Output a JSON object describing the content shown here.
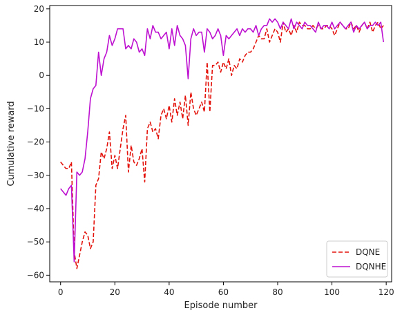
{
  "chart_data": {
    "type": "line",
    "title": "",
    "xlabel": "Episode number",
    "ylabel": "Cumulative reward",
    "xlim": [
      -4,
      122
    ],
    "ylim": [
      -62,
      21
    ],
    "xticks": [
      0,
      20,
      40,
      60,
      80,
      100,
      120
    ],
    "yticks": [
      -60,
      -50,
      -40,
      -30,
      -20,
      -10,
      0,
      10,
      20
    ],
    "xtick_labels": [
      "0",
      "20",
      "40",
      "60",
      "80",
      "100",
      "120"
    ],
    "ytick_labels": [
      "−60",
      "−50",
      "−40",
      "−30",
      "−20",
      "−10",
      "0",
      "10",
      "20"
    ],
    "grid": false,
    "legend_position": "lower-right",
    "series": [
      {
        "name": "DQNE",
        "color": "#e3120b",
        "linestyle": "dashed",
        "x": [
          0,
          1,
          2,
          3,
          4,
          5,
          6,
          7,
          8,
          9,
          10,
          11,
          12,
          13,
          14,
          15,
          16,
          17,
          18,
          19,
          20,
          21,
          22,
          23,
          24,
          25,
          26,
          27,
          28,
          29,
          30,
          31,
          32,
          33,
          34,
          35,
          36,
          37,
          38,
          39,
          40,
          41,
          42,
          43,
          44,
          45,
          46,
          47,
          48,
          49,
          50,
          51,
          52,
          53,
          54,
          55,
          56,
          57,
          58,
          59,
          60,
          61,
          62,
          63,
          64,
          65,
          66,
          67,
          68,
          69,
          70,
          71,
          72,
          73,
          74,
          75,
          76,
          77,
          78,
          79,
          80,
          81,
          82,
          83,
          84,
          85,
          86,
          87,
          88,
          89,
          90,
          91,
          92,
          93,
          94,
          95,
          96,
          97,
          98,
          99,
          100,
          101,
          102,
          103,
          104,
          105,
          106,
          107,
          108,
          109,
          110,
          111,
          112,
          113,
          114,
          115,
          116,
          117,
          118,
          119
        ],
        "y": [
          -26,
          -27,
          -28,
          -28,
          -26,
          -53,
          -58,
          -54,
          -50,
          -47,
          -48,
          -52,
          -50,
          -33,
          -31,
          -23,
          -25,
          -22,
          -17,
          -28,
          -24,
          -28,
          -22,
          -16,
          -12,
          -29,
          -21,
          -26,
          -27,
          -25,
          -22,
          -32,
          -16,
          -14,
          -17,
          -16,
          -19,
          -12,
          -10,
          -13,
          -9,
          -14,
          -7,
          -12,
          -8,
          -13,
          -6,
          -15,
          -5,
          -10,
          -12,
          -10,
          -8,
          -11,
          4,
          -11,
          3,
          3,
          4,
          1,
          4,
          2,
          5,
          0,
          3,
          2,
          5,
          4,
          6,
          7,
          7,
          8,
          10,
          12,
          11,
          11,
          14,
          10,
          12,
          14,
          13,
          10,
          16,
          13,
          14,
          12,
          15,
          13,
          16,
          15,
          15,
          14,
          14,
          15,
          14,
          15,
          14,
          14,
          15,
          15,
          14,
          12,
          14,
          16,
          15,
          14,
          14,
          16,
          14,
          15,
          13,
          15,
          16,
          14,
          16,
          13,
          15,
          16,
          14,
          15
        ]
      },
      {
        "name": "DQNHE",
        "color": "#bd10d0",
        "linestyle": "solid",
        "x": [
          0,
          1,
          2,
          3,
          4,
          5,
          6,
          7,
          8,
          9,
          10,
          11,
          12,
          13,
          14,
          15,
          16,
          17,
          18,
          19,
          20,
          21,
          22,
          23,
          24,
          25,
          26,
          27,
          28,
          29,
          30,
          31,
          32,
          33,
          34,
          35,
          36,
          37,
          38,
          39,
          40,
          41,
          42,
          43,
          44,
          45,
          46,
          47,
          48,
          49,
          50,
          51,
          52,
          53,
          54,
          55,
          56,
          57,
          58,
          59,
          60,
          61,
          62,
          63,
          64,
          65,
          66,
          67,
          68,
          69,
          70,
          71,
          72,
          73,
          74,
          75,
          76,
          77,
          78,
          79,
          80,
          81,
          82,
          83,
          84,
          85,
          86,
          87,
          88,
          89,
          90,
          91,
          92,
          93,
          94,
          95,
          96,
          97,
          98,
          99,
          100,
          101,
          102,
          103,
          104,
          105,
          106,
          107,
          108,
          109,
          110,
          111,
          112,
          113,
          114,
          115,
          116,
          117,
          118,
          119
        ],
        "y": [
          -34,
          -35,
          -36,
          -34,
          -33,
          -56,
          -29,
          -30,
          -29,
          -25,
          -17,
          -7,
          -4,
          -3,
          7,
          0,
          5,
          7,
          12,
          9,
          11,
          14,
          14,
          14,
          8,
          9,
          8,
          11,
          10,
          7,
          8,
          6,
          14,
          11,
          15,
          13,
          13,
          11,
          12,
          13,
          8,
          14,
          9,
          15,
          12,
          11,
          9,
          -1,
          11,
          14,
          12,
          13,
          13,
          7,
          14,
          13,
          11,
          12,
          14,
          12,
          6,
          12,
          11,
          12,
          13,
          14,
          12,
          14,
          13,
          14,
          14,
          13,
          15,
          12,
          14,
          15,
          15,
          17,
          16,
          17,
          16,
          14,
          16,
          15,
          14,
          17,
          14,
          16,
          15,
          14,
          16,
          15,
          15,
          14,
          13,
          16,
          14,
          15,
          15,
          14,
          16,
          14,
          15,
          16,
          15,
          14,
          15,
          16,
          13,
          15,
          14,
          15,
          16,
          14,
          15,
          15,
          16,
          15,
          16,
          10
        ]
      }
    ]
  }
}
